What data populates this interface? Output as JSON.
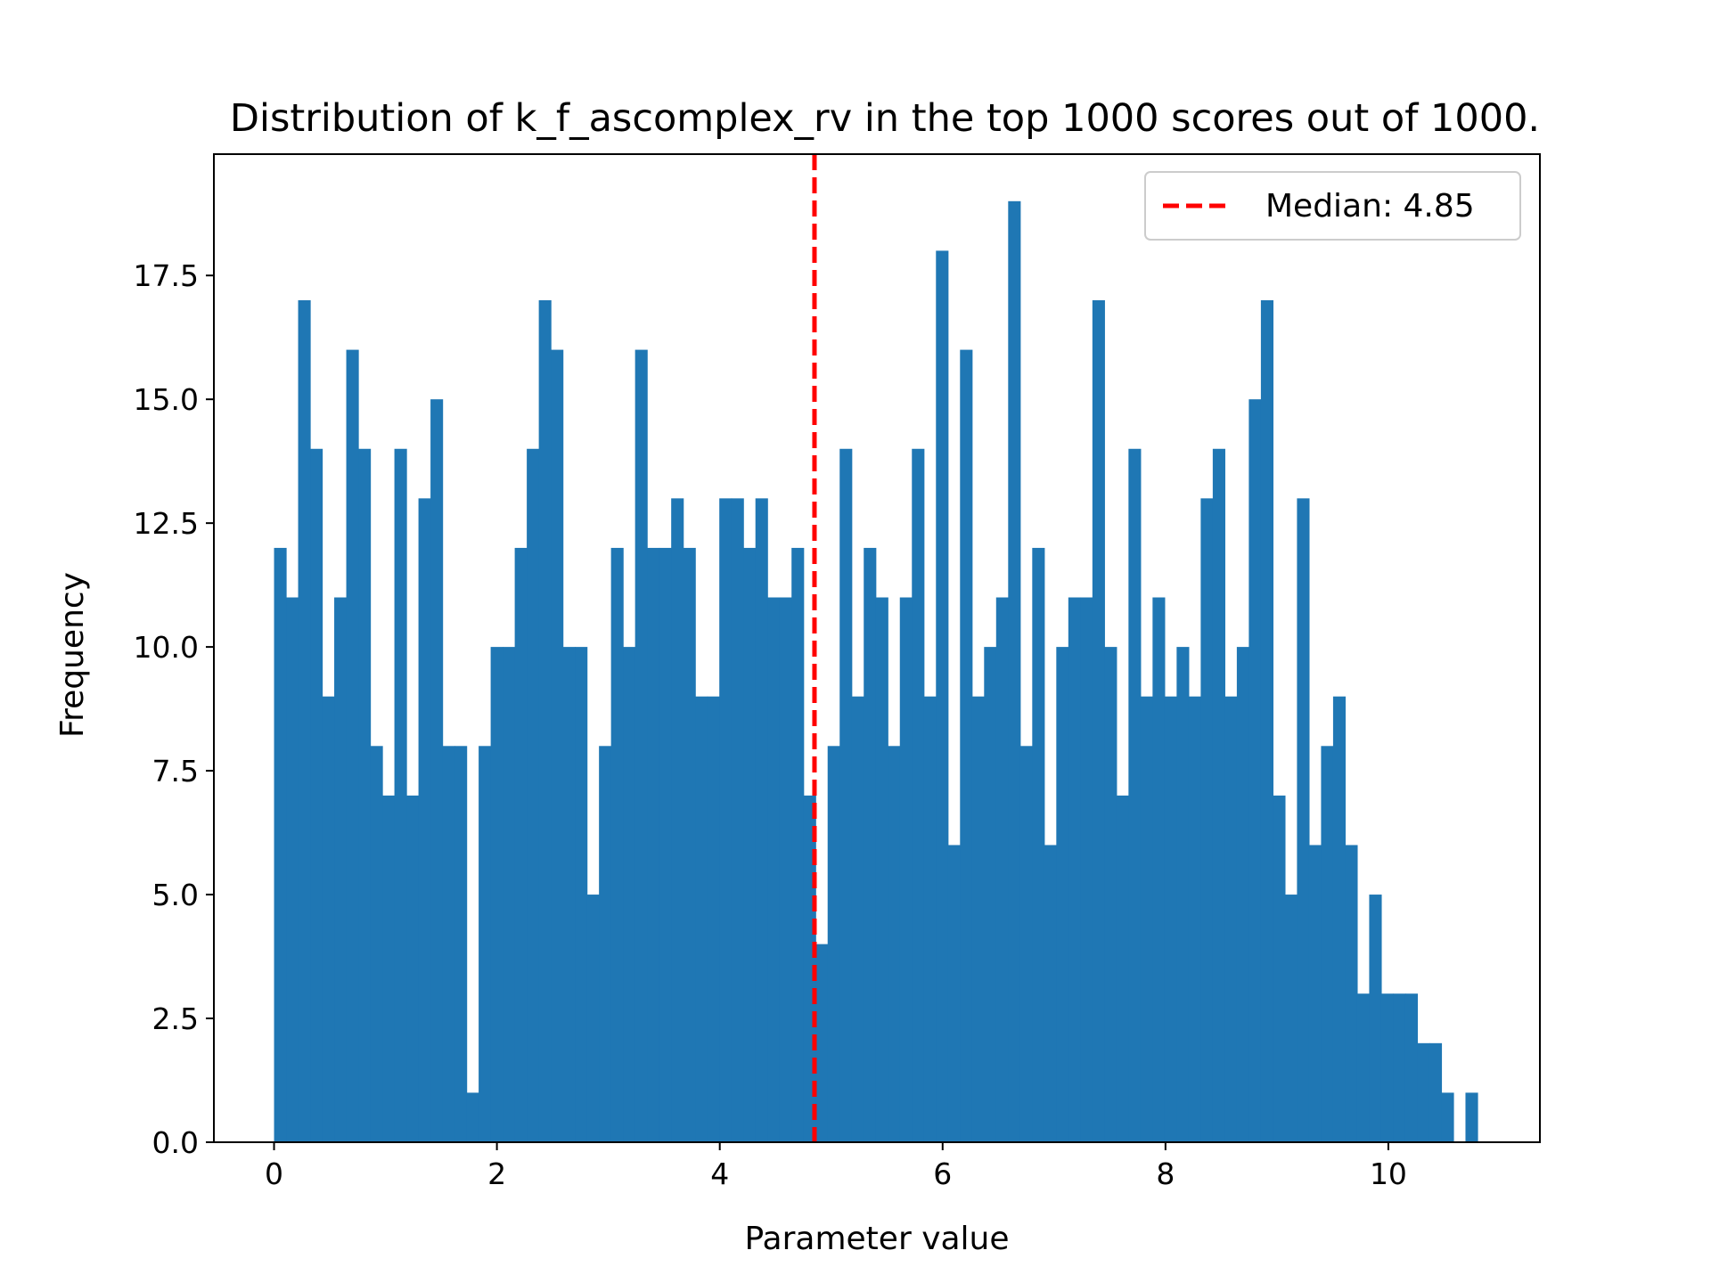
{
  "chart_data": {
    "type": "bar",
    "title": "Distribution of k_f_ascomplex_rv in the top 1000 scores out of 1000.",
    "xlabel": "Parameter value",
    "ylabel": "Frequency",
    "xlim": [
      -0.54,
      11.36
    ],
    "ylim": [
      0,
      19.95
    ],
    "x_ticks": [
      "0",
      "2",
      "4",
      "6",
      "8",
      "10"
    ],
    "x_tick_values": [
      0,
      2,
      4,
      6,
      8,
      10
    ],
    "y_ticks": [
      "0.0",
      "2.5",
      "5.0",
      "7.5",
      "10.0",
      "12.5",
      "15.0",
      "17.5"
    ],
    "y_tick_values": [
      0,
      2.5,
      5,
      7.5,
      10,
      12.5,
      15,
      17.5
    ],
    "bin_start": 0.0,
    "bin_width": 0.108,
    "values": [
      12,
      11,
      17,
      14,
      9,
      11,
      16,
      14,
      8,
      7,
      14,
      7,
      13,
      15,
      8,
      8,
      1,
      8,
      10,
      10,
      12,
      14,
      17,
      16,
      10,
      10,
      5,
      8,
      12,
      10,
      16,
      12,
      12,
      13,
      12,
      9,
      9,
      13,
      13,
      12,
      13,
      11,
      11,
      12,
      7,
      4,
      8,
      14,
      9,
      12,
      11,
      8,
      11,
      14,
      9,
      18,
      6,
      16,
      9,
      10,
      11,
      19,
      8,
      12,
      6,
      10,
      11,
      11,
      17,
      10,
      7,
      14,
      9,
      11,
      9,
      10,
      9,
      13,
      14,
      9,
      10,
      15,
      17,
      7,
      5,
      13,
      6,
      8,
      9,
      6,
      3,
      5,
      3,
      3,
      3,
      2,
      2,
      1,
      0,
      1
    ],
    "bar_color": "#1f77b4",
    "median": {
      "value": 4.85,
      "legend_label": "Median: 4.85",
      "color": "#ff0000",
      "style": "dashed"
    },
    "legend_position": "top-right",
    "grid": false
  }
}
